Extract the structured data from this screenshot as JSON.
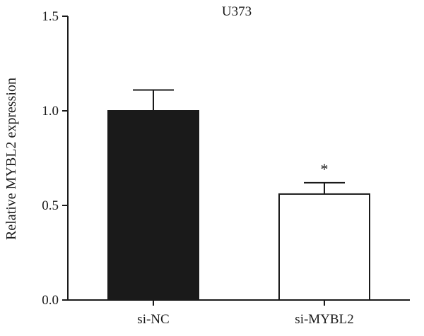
{
  "chart_data": {
    "type": "bar",
    "title": "U373",
    "xlabel": "",
    "ylabel": "Relative MYBL2 expression",
    "ylim": [
      0,
      1.5
    ],
    "yticks": [
      0.0,
      0.5,
      1.0,
      1.5
    ],
    "ytick_labels": [
      "0.0",
      "0.5",
      "1.0",
      "1.5"
    ],
    "categories": [
      "si-NC",
      "si-MYBL2"
    ],
    "values": [
      1.0,
      0.56
    ],
    "errors": [
      0.11,
      0.06
    ],
    "bar_colors": [
      "#1a1a1a",
      "#ffffff"
    ],
    "annotations": [
      {
        "category": "si-MYBL2",
        "text": "*"
      }
    ],
    "grid": false,
    "legend": "none"
  }
}
